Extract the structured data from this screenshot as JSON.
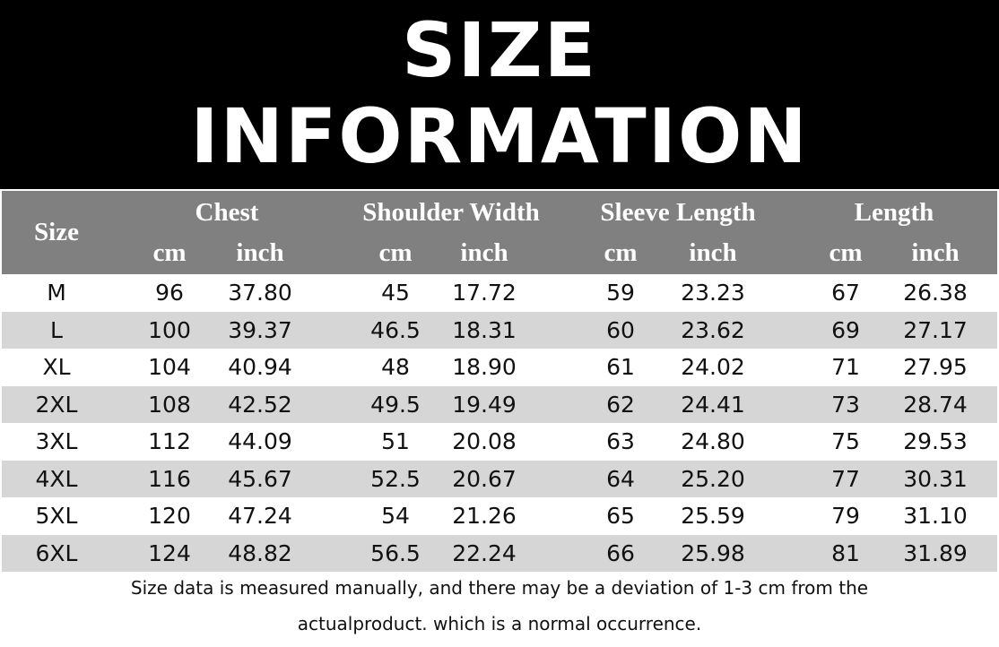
{
  "title": {
    "line1": "SIZE",
    "line2": "INFORMATION"
  },
  "table": {
    "size_header": "Size",
    "groups": [
      "Chest",
      "Shoulder Width",
      "Sleeve Length",
      "Length"
    ],
    "units": [
      "cm",
      "inch",
      "cm",
      "inch",
      "cm",
      "inch",
      "cm",
      "inch"
    ],
    "rows": [
      [
        "M",
        "96",
        "37.80",
        "45",
        "17.72",
        "59",
        "23.23",
        "67",
        "26.38"
      ],
      [
        "L",
        "100",
        "39.37",
        "46.5",
        "18.31",
        "60",
        "23.62",
        "69",
        "27.17"
      ],
      [
        "XL",
        "104",
        "40.94",
        "48",
        "18.90",
        "61",
        "24.02",
        "71",
        "27.95"
      ],
      [
        "2XL",
        "108",
        "42.52",
        "49.5",
        "19.49",
        "62",
        "24.41",
        "73",
        "28.74"
      ],
      [
        "3XL",
        "112",
        "44.09",
        "51",
        "20.08",
        "63",
        "24.80",
        "75",
        "29.53"
      ],
      [
        "4XL",
        "116",
        "45.67",
        "52.5",
        "20.67",
        "64",
        "25.20",
        "77",
        "30.31"
      ],
      [
        "5XL",
        "120",
        "47.24",
        "54",
        "21.26",
        "65",
        "25.59",
        "79",
        "31.10"
      ],
      [
        "6XL",
        "124",
        "48.82",
        "56.5",
        "22.24",
        "66",
        "25.98",
        "81",
        "31.89"
      ]
    ]
  },
  "note": {
    "line1": "Size data is measured manually, and there may be a deviation of 1-3 cm from the",
    "line2": "actualproduct. which is a normal occurrence."
  },
  "colors": {
    "title_bg": "#000000",
    "header_bg": "#808080",
    "alt_row": "#d6d6d6"
  }
}
